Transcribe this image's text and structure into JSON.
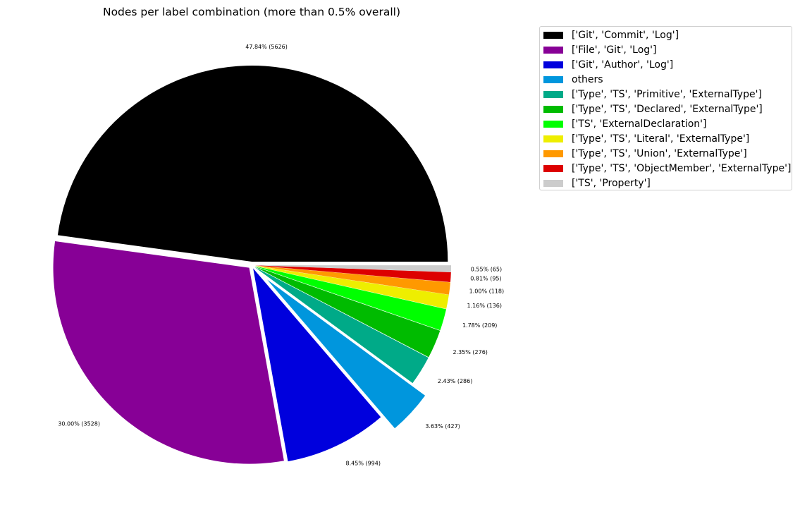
{
  "chart_data": {
    "type": "pie",
    "title": "Nodes per label combination (more than 0.5% overall)",
    "legend_position": "top-right, outside plot",
    "slices": [
      {
        "label": "['Git', 'Commit', 'Log']",
        "value": 5626,
        "percent_label": "47.84% (5626)",
        "color": "#000000",
        "explode": false
      },
      {
        "label": "['File', 'Git', 'Log']",
        "value": 3528,
        "percent_label": "30.00% (3528)",
        "color": "#870096",
        "explode": false
      },
      {
        "label": "['Git', 'Author', 'Log']",
        "value": 994,
        "percent_label": "8.45% (994)",
        "color": "#0000dd",
        "explode": false
      },
      {
        "label": "others",
        "value": 427,
        "percent_label": "3.63% (427)",
        "color": "#0096dd",
        "explode": true
      },
      {
        "label": "['Type', 'TS', 'Primitive', 'ExternalType']",
        "value": 286,
        "percent_label": "2.43% (286)",
        "color": "#00aa88",
        "explode": false
      },
      {
        "label": "['Type', 'TS', 'Declared', 'ExternalType']",
        "value": 276,
        "percent_label": "2.35% (276)",
        "color": "#00bb00",
        "explode": false
      },
      {
        "label": "['TS', 'ExternalDeclaration']",
        "value": 209,
        "percent_label": "1.78% (209)",
        "color": "#00ff00",
        "explode": false
      },
      {
        "label": "['Type', 'TS', 'Literal', 'ExternalType']",
        "value": 136,
        "percent_label": "1.16% (136)",
        "color": "#eeee00",
        "explode": false
      },
      {
        "label": "['Type', 'TS', 'Union', 'ExternalType']",
        "value": 118,
        "percent_label": "1.00% (118)",
        "color": "#ff9900",
        "explode": false
      },
      {
        "label": "['Type', 'TS', 'ObjectMember', 'ExternalType']",
        "value": 95,
        "percent_label": "0.81% (95)",
        "color": "#dd0000",
        "explode": false
      },
      {
        "label": "['TS', 'Property']",
        "value": 65,
        "percent_label": "0.55% (65)",
        "color": "#cccccc",
        "explode": false
      }
    ]
  }
}
